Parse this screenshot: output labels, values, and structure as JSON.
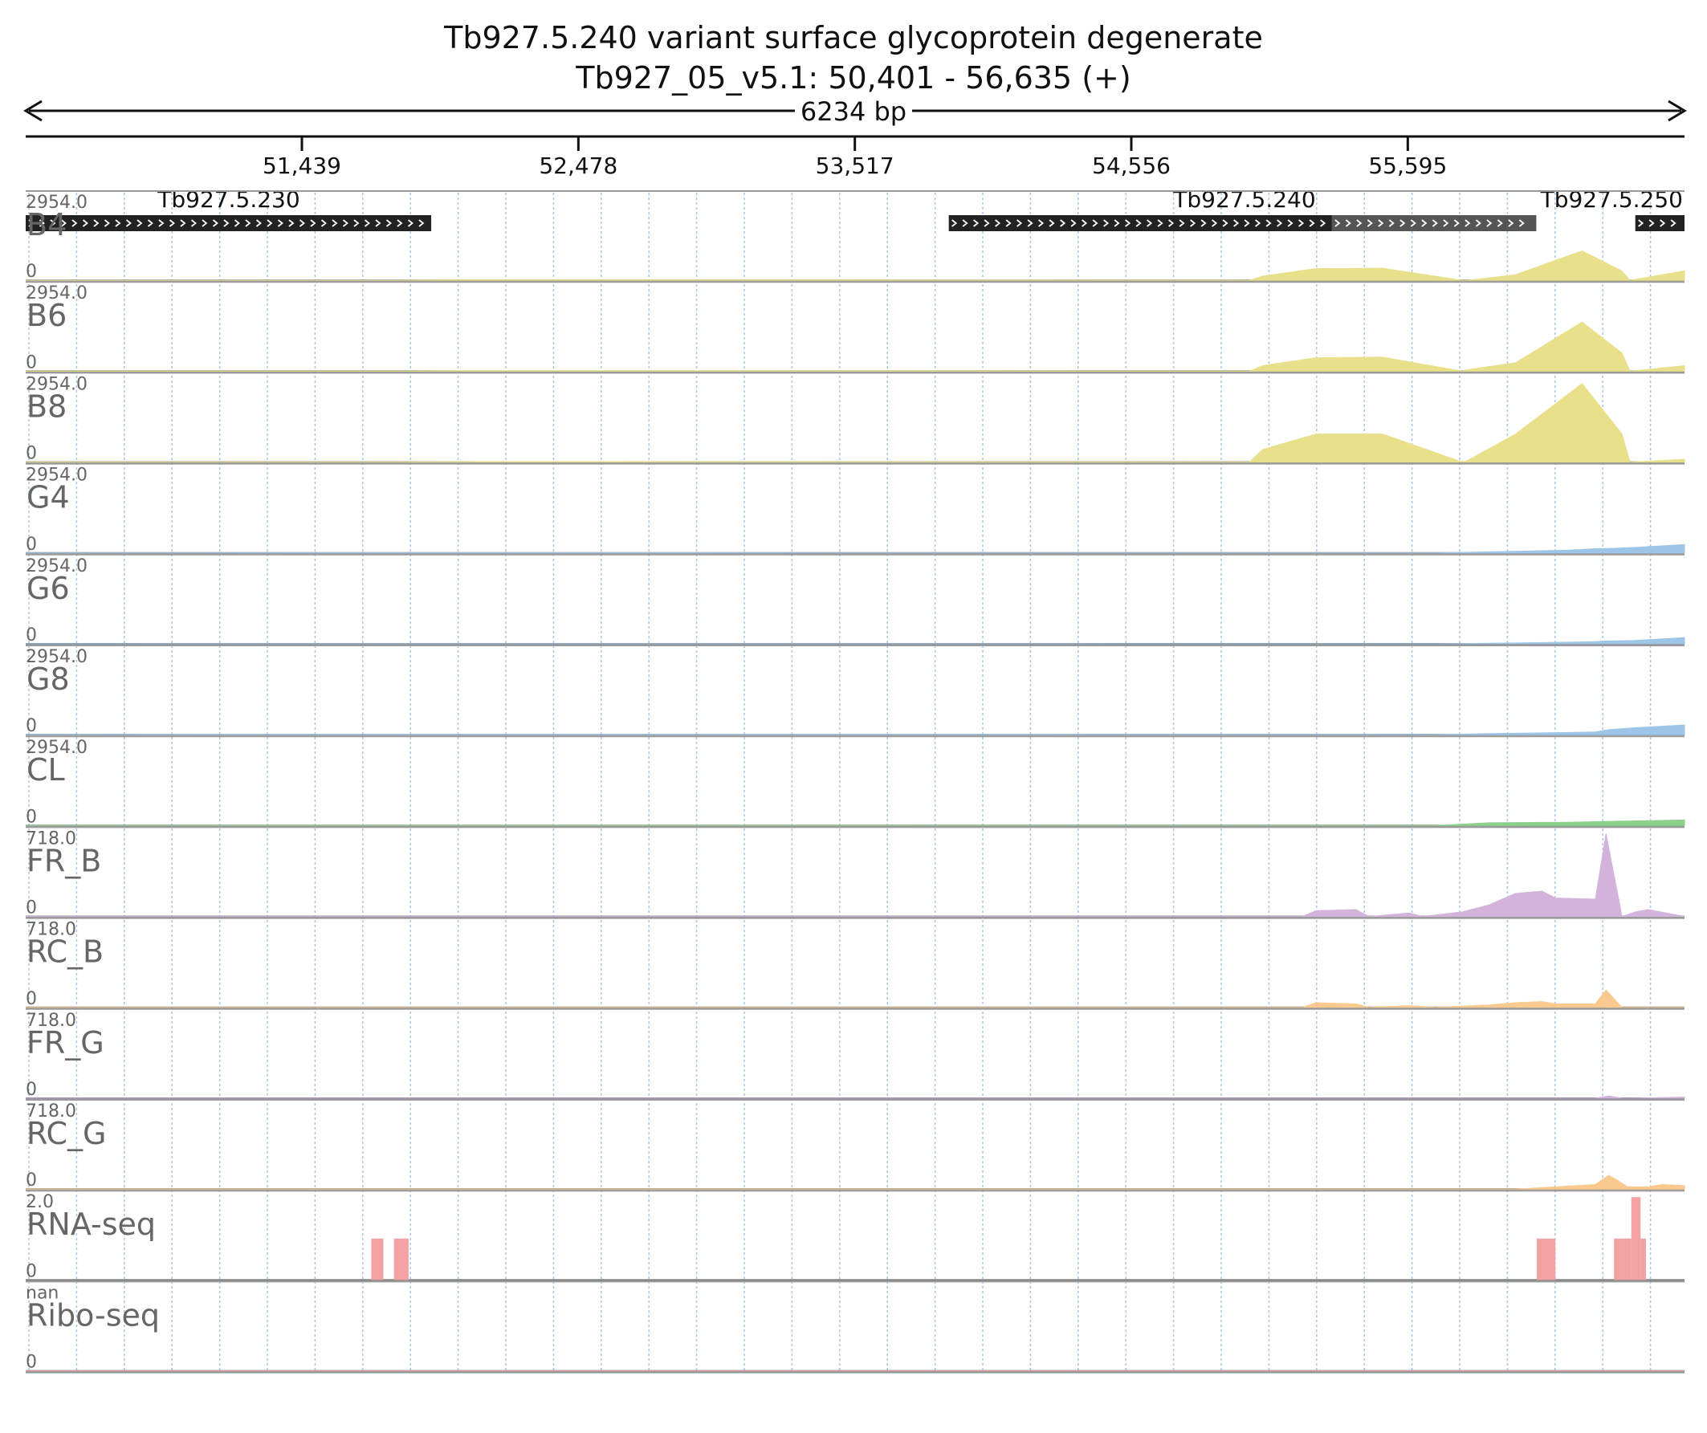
{
  "title": {
    "line1": "Tb927.5.240  variant surface glycoprotein  degenerate",
    "line2": "Tb927_05_v5.1: 50,401 - 56,635 (+)"
  },
  "chart_data": {
    "type": "area",
    "region": {
      "chrom": "Tb927_05_v5.1",
      "start": 50401,
      "end": 56635,
      "strand": "+"
    },
    "span_label": "6234 bp",
    "ticks": [
      {
        "pos": 51439,
        "label": "51,439"
      },
      {
        "pos": 52478,
        "label": "52,478"
      },
      {
        "pos": 53517,
        "label": "53,517"
      },
      {
        "pos": 54556,
        "label": "54,556"
      },
      {
        "pos": 55595,
        "label": "55,595"
      }
    ],
    "genes": [
      {
        "name": "Tb927.5.230",
        "segments": [
          {
            "start": 50401,
            "end": 51925,
            "color": "#222222"
          }
        ]
      },
      {
        "name": "Tb927.5.240",
        "segments": [
          {
            "start": 53870,
            "end": 55310,
            "color": "#222222"
          },
          {
            "start": 55310,
            "end": 56078,
            "color": "#555555"
          }
        ]
      },
      {
        "name": "Tb927.5.250",
        "segments": [
          {
            "start": 56450,
            "end": 56635,
            "color": "#222222"
          }
        ]
      }
    ],
    "tracks": [
      {
        "name": "B4",
        "max": "2954.0",
        "min": "0",
        "ymax": 2954,
        "color": "#e8e08a",
        "x": [
          50401,
          51800,
          52100,
          55000,
          55050,
          55250,
          55500,
          55800,
          55820,
          56000,
          56250,
          56400,
          56430,
          56635
        ],
        "y": [
          0,
          0,
          15,
          0,
          150,
          420,
          430,
          0,
          0,
          200,
          1050,
          330,
          0,
          340
        ]
      },
      {
        "name": "B6",
        "max": "2954.0",
        "min": "0",
        "ymax": 2954,
        "color": "#e8e08a",
        "x": [
          50401,
          51800,
          52100,
          55000,
          55050,
          55250,
          55500,
          55800,
          55820,
          56000,
          56250,
          56400,
          56430,
          56635
        ],
        "y": [
          0,
          0,
          15,
          0,
          200,
          480,
          500,
          0,
          60,
          300,
          1750,
          650,
          0,
          200
        ]
      },
      {
        "name": "B8",
        "max": "2954.0",
        "min": "0",
        "ymax": 2954,
        "color": "#e8e08a",
        "x": [
          50401,
          51800,
          52100,
          55000,
          55050,
          55250,
          55500,
          55800,
          55820,
          56000,
          56250,
          56400,
          56430,
          56635
        ],
        "y": [
          0,
          0,
          15,
          0,
          450,
          1000,
          1000,
          0,
          60,
          1000,
          2800,
          1000,
          0,
          100
        ]
      },
      {
        "name": "G4",
        "max": "2954.0",
        "min": "0",
        "ymax": 2954,
        "color": "#9cc5e8",
        "x": [
          50401,
          51800,
          55700,
          55900,
          56200,
          56300,
          56350,
          56450,
          56635
        ],
        "y": [
          0,
          5,
          0,
          40,
          100,
          150,
          160,
          200,
          300
        ]
      },
      {
        "name": "G6",
        "max": "2954.0",
        "min": "0",
        "ymax": 2954,
        "color": "#9cc5e8",
        "x": [
          50401,
          51800,
          55700,
          55900,
          56200,
          56300,
          56350,
          56450,
          56635
        ],
        "y": [
          0,
          5,
          0,
          20,
          60,
          80,
          100,
          120,
          220
        ]
      },
      {
        "name": "G8",
        "max": "2954.0",
        "min": "0",
        "ymax": 2954,
        "color": "#9cc5e8",
        "x": [
          50401,
          51800,
          55700,
          55900,
          56200,
          56300,
          56350,
          56450,
          56635
        ],
        "y": [
          0,
          10,
          0,
          40,
          80,
          100,
          180,
          250,
          350
        ]
      },
      {
        "name": "CL",
        "max": "2954.0",
        "min": "0",
        "ymax": 2954,
        "color": "#8cd08c",
        "x": [
          50401,
          51800,
          55700,
          55900,
          56200,
          56300,
          56400,
          56635
        ],
        "y": [
          0,
          5,
          0,
          100,
          120,
          140,
          160,
          200
        ]
      },
      {
        "name": "FR_B",
        "max": "718.0",
        "min": "0",
        "ymax": 718,
        "color": "#d3b3dc",
        "x": [
          50401,
          55200,
          55250,
          55400,
          55450,
          55600,
          55650,
          55800,
          55900,
          56000,
          56100,
          56150,
          56300,
          56340,
          56400,
          56450,
          56500,
          56635
        ],
        "y": [
          0,
          0,
          50,
          60,
          0,
          30,
          0,
          40,
          100,
          200,
          220,
          160,
          150,
          718,
          0,
          40,
          60,
          0
        ]
      },
      {
        "name": "RC_B",
        "max": "718.0",
        "min": "0",
        "ymax": 718,
        "color": "#f9c98e",
        "x": [
          50401,
          55200,
          55250,
          55400,
          55450,
          55600,
          55700,
          55900,
          56000,
          56100,
          56150,
          56300,
          56340,
          56400,
          56635
        ],
        "y": [
          0,
          0,
          40,
          30,
          0,
          15,
          0,
          20,
          40,
          50,
          30,
          30,
          150,
          0,
          0
        ]
      },
      {
        "name": "FR_G",
        "max": "718.0",
        "min": "0",
        "ymax": 718,
        "color": "#d3b3dc",
        "x": [
          50401,
          56300,
          56350,
          56400,
          56450,
          56635
        ],
        "y": [
          0,
          0,
          20,
          0,
          0,
          10
        ]
      },
      {
        "name": "RC_G",
        "max": "718.0",
        "min": "0",
        "ymax": 718,
        "color": "#f9c98e",
        "x": [
          50401,
          56000,
          56300,
          56350,
          56380,
          56420,
          56500,
          56550,
          56635
        ],
        "y": [
          0,
          0,
          40,
          120,
          80,
          20,
          20,
          40,
          30
        ]
      },
      {
        "name": "RNA-seq",
        "max": "2.0",
        "min": "0",
        "ymax": 2,
        "color": "#f2a2a2",
        "bars": true,
        "x": [
          51700,
          51745,
          51785,
          51840,
          56080,
          56150,
          56370,
          56415,
          56435,
          56470
        ],
        "x2": [
          51745,
          51785,
          51840,
          51900,
          56150,
          56370,
          56415,
          56435,
          56470,
          56490
        ],
        "y": [
          1,
          0,
          1,
          0,
          1,
          0,
          1,
          1,
          2,
          1
        ]
      },
      {
        "name": "Ribo-seq",
        "max": "nan",
        "min": "0",
        "ymax": 1,
        "color": "#f2a2a2",
        "x": [
          50401,
          56635
        ],
        "y": [
          0,
          0
        ]
      }
    ]
  }
}
